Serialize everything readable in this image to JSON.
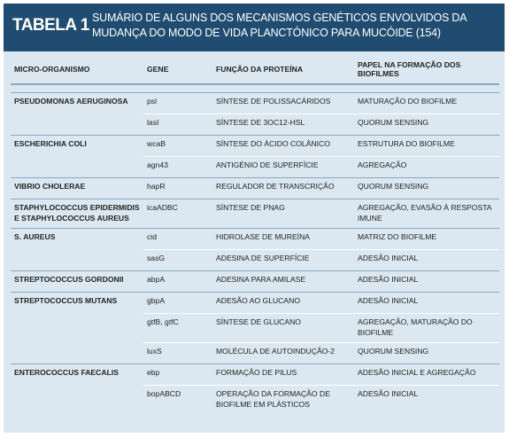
{
  "header": {
    "label": "TABELA 1",
    "title": "SUMÁRIO DE ALGUNS DOS MECANISMOS GENÉTICOS ENVOLVIDOS DA MUDANÇA DO MODO DE VIDA PLANCTÓNICO PARA MUCÓIDE (154)"
  },
  "table": {
    "columns": [
      "MICRO-ORGANISMO",
      "GENE",
      "FUNÇÃO DA PROTEÍNA",
      "PAPEL NA FORMAÇÃO DOS BIOFILMES"
    ],
    "groups": [
      {
        "organism": "PSEUDOMONAS AERUGINOSA",
        "rows": [
          [
            "psl",
            "SÍNTESE DE POLISSACÁRIDOS",
            "MATURAÇÃO DO BIOFILME"
          ],
          [
            "lasI",
            "SÍNTESE DE 3OC12-HSL",
            "QUORUM SENSING"
          ]
        ]
      },
      {
        "organism": "ESCHERICHIA COLI",
        "rows": [
          [
            "wcaB",
            "SÍNTESE DO ÁCIDO COLÂNICO",
            "ESTRUTURA DO BIOFILME"
          ],
          [
            "agn43",
            "ANTIGÉNIO DE SUPERFÍCIE",
            "AGREGAÇÃO"
          ]
        ]
      },
      {
        "organism": "VIBRIO CHOLERAE",
        "rows": [
          [
            "hapR",
            "REGULADOR DE TRANSCRIÇÃO",
            "QUORUM SENSING"
          ]
        ]
      },
      {
        "organism": "STAPHYLOCOCCUS EPIDERMIDIS E STAPHYLOCOCCUS AUREUS",
        "rows": [
          [
            "icaADBC",
            "SÍNTESE DE PNAG",
            "AGREGAÇÃO, EVASÃO À RESPOSTA IMUNE"
          ]
        ]
      },
      {
        "organism": "S. AUREUS",
        "rows": [
          [
            "cid",
            "HIDROLASE DE MUREÍNA",
            "MATRIZ DO BIOFILME"
          ],
          [
            "sasG",
            "ADESINA DE SUPERFÍCIE",
            "ADESÃO INICIAL"
          ]
        ]
      },
      {
        "organism": "STREPTOCOCCUS GORDONII",
        "rows": [
          [
            "abpA",
            "ADESINA PARA AMILASE",
            "ADESÃO INICIAL"
          ]
        ]
      },
      {
        "organism": "STREPTOCOCCUS MUTANS",
        "rows": [
          [
            "gbpA",
            "ADESÃO AO GLUCANO",
            "ADESÃO INICIAL"
          ],
          [
            "gtfB, gtfC",
            "SÍNTESE DE GLUCANO",
            "AGREGAÇÃO, MATURAÇÃO DO BIOFILME"
          ],
          [
            "luxS",
            "MOLÉCULA DE AUTOINDUÇÃO-2",
            "QUORUM SENSING"
          ]
        ]
      },
      {
        "organism": "ENTEROCOCCUS FAECALIS",
        "rows": [
          [
            "ebp",
            "FORMAÇÃO DE PILUS",
            "ADESÃO INICIAL E AGREGAÇÃO"
          ],
          [
            "bopABCD",
            "OPERAÇÃO DA FORMAÇÃO DE BIOFILME EM PLÁSTICOS",
            "ADESÃO INICIAL"
          ]
        ]
      }
    ]
  }
}
